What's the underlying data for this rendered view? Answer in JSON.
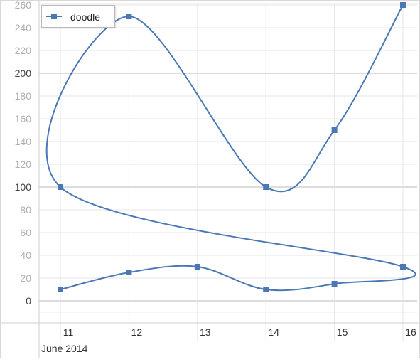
{
  "chart_data": {
    "type": "line",
    "series": [
      {
        "name": "doodle",
        "color": "#4a78b5",
        "marker": "square",
        "smooth": true,
        "points": [
          {
            "x": 11,
            "y": 10
          },
          {
            "x": 12,
            "y": 25
          },
          {
            "x": 13,
            "y": 30
          },
          {
            "x": 14,
            "y": 10
          },
          {
            "x": 15,
            "y": 15
          },
          {
            "x": 16,
            "y": 30
          },
          {
            "x": 11,
            "y": 100
          },
          {
            "x": 12,
            "y": 250
          },
          {
            "x": 14,
            "y": 100
          },
          {
            "x": 15,
            "y": 150
          },
          {
            "x": 16,
            "y": 260
          }
        ]
      }
    ],
    "x_ticks": [
      11,
      12,
      13,
      14,
      15,
      16
    ],
    "y_ticks": [
      0,
      20,
      40,
      60,
      80,
      100,
      120,
      140,
      160,
      180,
      200,
      220,
      240,
      260
    ],
    "x_axis_label": "June 2014",
    "xlim": [
      10.7,
      16.2
    ],
    "ylim": [
      -20,
      262
    ],
    "major_y_gridlines": [
      0,
      100,
      200
    ],
    "legend_position": "top-left",
    "grid": true
  }
}
